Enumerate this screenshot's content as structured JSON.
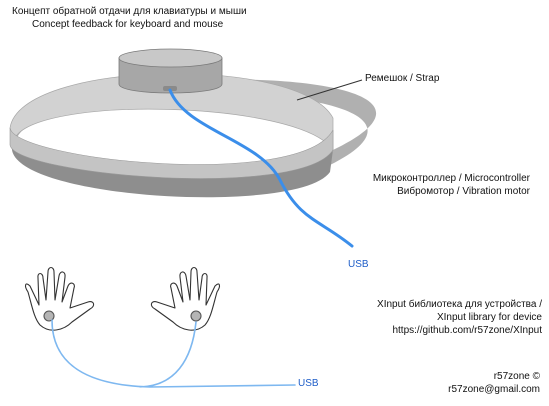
{
  "title": {
    "ru": "Концепт обратной отдачи для клавиатуры и мыши",
    "en": "Concept feedback for keyboard and mouse"
  },
  "labels": {
    "strap": "Ремешок / Strap",
    "microcontroller": "Микроконтроллер / Microcontroller",
    "vibration_motor": "Вибромотор / Vibration motor",
    "usb_top": "USB",
    "usb_bottom": "USB"
  },
  "library": {
    "line1": "XInput библиотека для устройства /",
    "line2": "XInput library for device",
    "link": "https://github.com/r57zone/XInput"
  },
  "author": {
    "name": "r57zone ©",
    "email": "r57zone@gmail.com"
  },
  "colors": {
    "cable_blue": "#3b8eea",
    "light_cable_blue": "#7eb8f0",
    "strap_light": "#cfcfcf",
    "strap_dark": "#8f8f8f",
    "device_gray": "#b5b5b5"
  }
}
